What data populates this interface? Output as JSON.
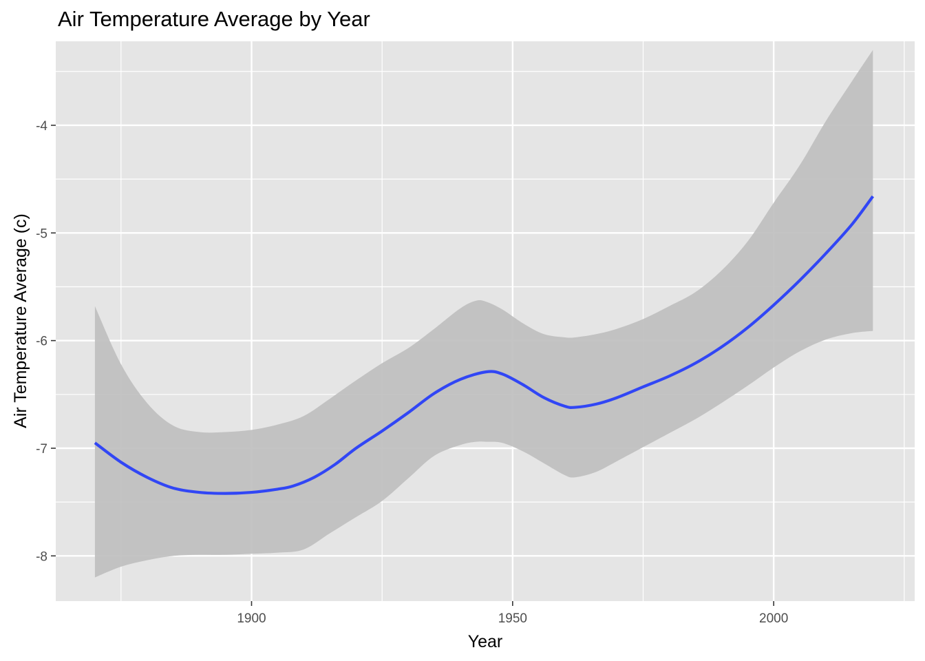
{
  "chart_data": {
    "type": "line",
    "title": "Air Temperature Average by Year",
    "xlabel": "Year",
    "ylabel": "Air Temperature Average (c)",
    "xlim": [
      1862.5,
      2027
    ],
    "ylim": [
      -8.42,
      -3.22
    ],
    "x_ticks": [
      1900,
      1950,
      2000
    ],
    "x_minor_ticks": [
      1875,
      1925,
      1975,
      2025
    ],
    "y_ticks": [
      -8,
      -7,
      -6,
      -5,
      -4
    ],
    "y_minor_ticks": [
      -7.5,
      -6.5,
      -5.5,
      -4.5,
      -3.5
    ],
    "grid": true,
    "legend": "none",
    "colors": {
      "panel": "#e5e5e5",
      "grid": "#ffffff",
      "line": "#3146f5",
      "band": "#bfbfbf",
      "tick_text": "#4d4d4d"
    },
    "series": [
      {
        "smooth": {
          "x": [
            1870,
            1875,
            1880,
            1885,
            1890,
            1895,
            1900,
            1905,
            1908,
            1912,
            1916,
            1920,
            1925,
            1930,
            1935,
            1940,
            1945,
            1948,
            1952,
            1956,
            1960,
            1962,
            1966,
            1970,
            1975,
            1980,
            1985,
            1990,
            1995,
            2000,
            2005,
            2010,
            2015,
            2019
          ],
          "y": [
            -6.95,
            -7.13,
            -7.27,
            -7.37,
            -7.41,
            -7.42,
            -7.41,
            -7.38,
            -7.35,
            -7.27,
            -7.15,
            -7.0,
            -6.84,
            -6.67,
            -6.49,
            -6.36,
            -6.29,
            -6.31,
            -6.41,
            -6.53,
            -6.61,
            -6.62,
            -6.59,
            -6.53,
            -6.43,
            -6.33,
            -6.21,
            -6.06,
            -5.88,
            -5.67,
            -5.44,
            -5.19,
            -4.92,
            -4.66
          ]
        },
        "band": {
          "x": [
            1870,
            1875,
            1880,
            1885,
            1890,
            1895,
            1900,
            1905,
            1910,
            1915,
            1920,
            1925,
            1930,
            1935,
            1940,
            1943,
            1945,
            1948,
            1952,
            1956,
            1960,
            1962,
            1966,
            1970,
            1975,
            1980,
            1985,
            1990,
            1995,
            2000,
            2005,
            2010,
            2015,
            2019
          ],
          "upper": [
            -5.68,
            -6.22,
            -6.58,
            -6.79,
            -6.85,
            -6.85,
            -6.83,
            -6.78,
            -6.7,
            -6.54,
            -6.37,
            -6.21,
            -6.07,
            -5.89,
            -5.7,
            -5.63,
            -5.64,
            -5.71,
            -5.84,
            -5.94,
            -5.97,
            -5.97,
            -5.94,
            -5.89,
            -5.8,
            -5.68,
            -5.55,
            -5.35,
            -5.08,
            -4.72,
            -4.37,
            -3.96,
            -3.59,
            -3.3
          ],
          "lower": [
            -8.2,
            -8.1,
            -8.04,
            -8.0,
            -7.99,
            -7.99,
            -7.98,
            -7.97,
            -7.94,
            -7.79,
            -7.64,
            -7.49,
            -7.28,
            -7.07,
            -6.97,
            -6.94,
            -6.94,
            -6.95,
            -7.03,
            -7.14,
            -7.25,
            -7.27,
            -7.22,
            -7.12,
            -6.99,
            -6.86,
            -6.73,
            -6.58,
            -6.42,
            -6.25,
            -6.1,
            -5.99,
            -5.93,
            -5.91
          ]
        }
      }
    ]
  }
}
